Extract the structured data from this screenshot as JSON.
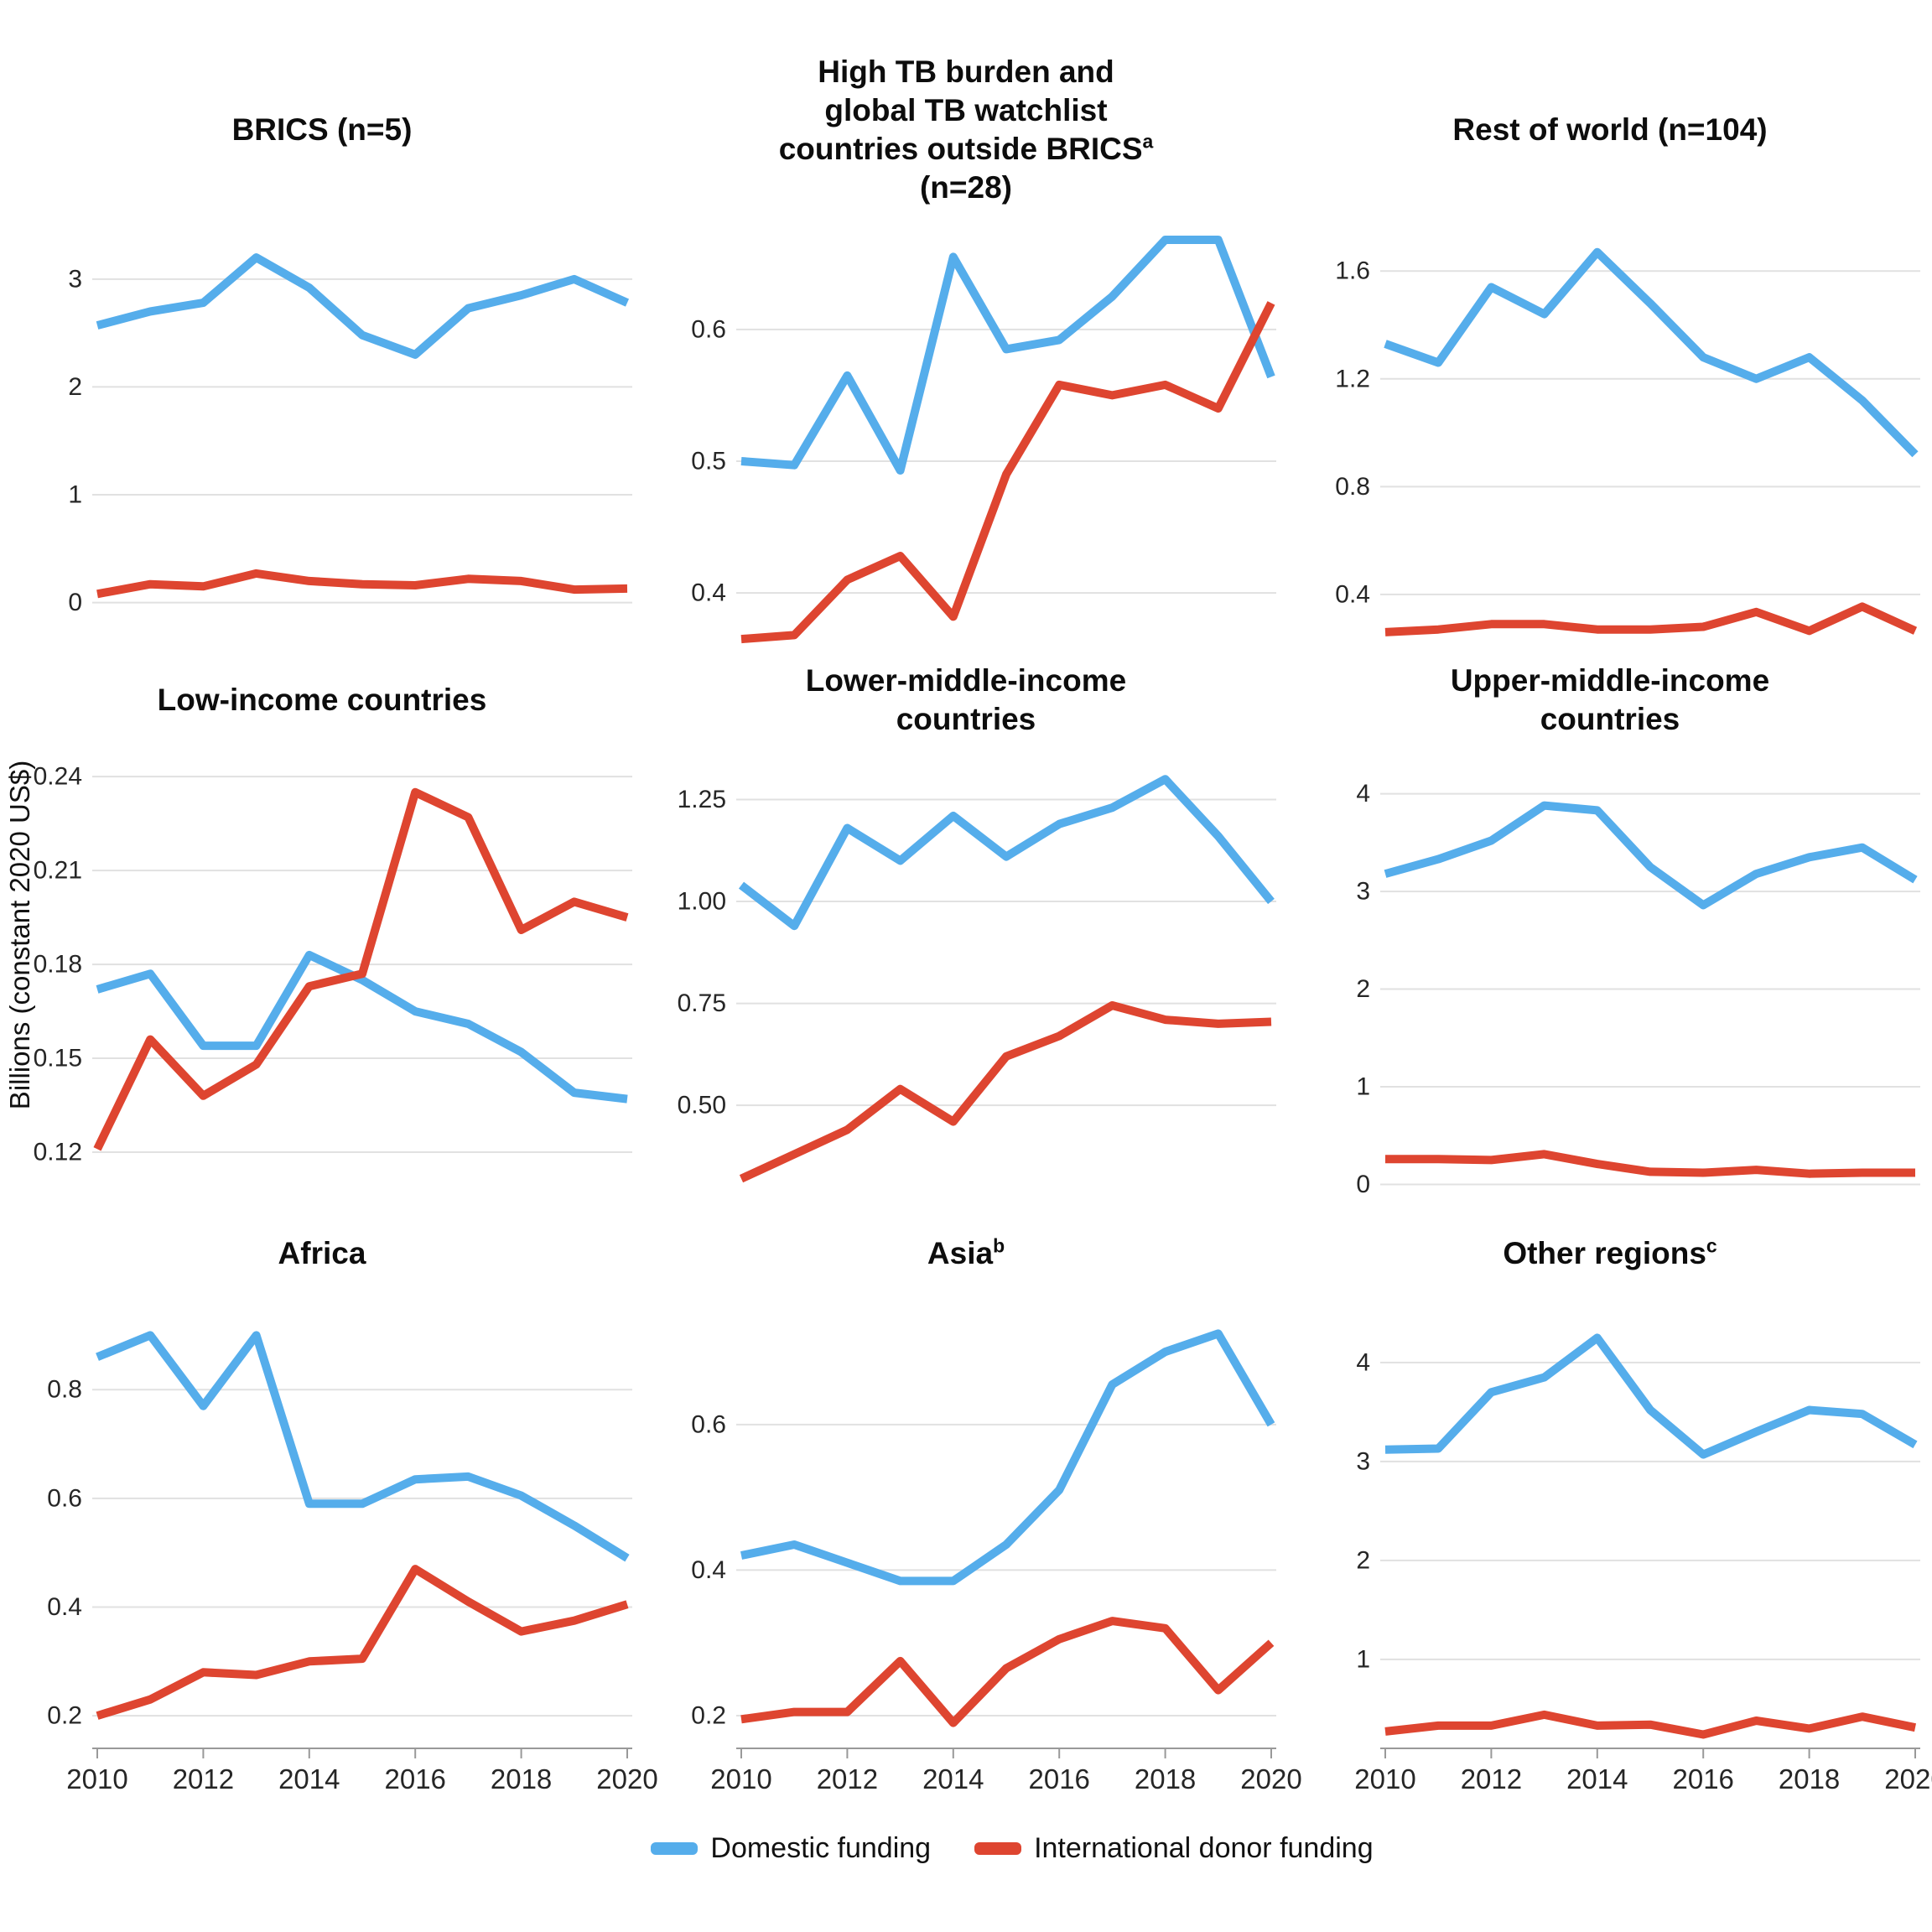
{
  "figure": {
    "y_axis_label": "Billions (constant 2020 US$)",
    "legend": [
      {
        "label": "Domestic funding",
        "color": "#55ADEB",
        "key": "Domestic funding"
      },
      {
        "label": "International donor funding",
        "color": "#DE4530",
        "key": "International donor funding"
      }
    ],
    "series_colors": {
      "Domestic funding": "#55ADEB",
      "International donor funding": "#DE4530"
    },
    "colors": {
      "gridline": "#E1E1E1",
      "axis_line": "#999999",
      "tick_text": "#262626",
      "title_text": "#0d0d0d"
    },
    "x_ticks": [
      2010,
      2012,
      2014,
      2016,
      2018,
      2020
    ],
    "x_tick_labels": [
      "2010",
      "2012",
      "2014",
      "2016",
      "2018",
      "2020"
    ]
  },
  "chart_data": [
    {
      "type": "line",
      "title_lines": [
        {
          "t": "BRICS (n=5)"
        }
      ],
      "x": [
        2010,
        2011,
        2012,
        2013,
        2014,
        2015,
        2016,
        2017,
        2018,
        2019,
        2020
      ],
      "y_domain": [
        -0.4,
        3.45
      ],
      "y_ticks": [
        {
          "v": 0,
          "label": "0"
        },
        {
          "v": 1,
          "label": "1"
        },
        {
          "v": 2,
          "label": "2"
        },
        {
          "v": 3,
          "label": "3"
        }
      ],
      "series": [
        {
          "name": "Domestic funding",
          "values": [
            2.57,
            2.7,
            2.78,
            3.2,
            2.92,
            2.48,
            2.3,
            2.73,
            2.85,
            3.0,
            2.78
          ]
        },
        {
          "name": "International donor funding",
          "values": [
            0.08,
            0.17,
            0.15,
            0.27,
            0.2,
            0.17,
            0.16,
            0.22,
            0.2,
            0.12,
            0.13
          ]
        }
      ]
    },
    {
      "type": "line",
      "title_lines": [
        {
          "t": "High TB burden and"
        },
        {
          "t": "global TB watchlist"
        },
        {
          "t": "countries outside BRICS",
          "sup": "a"
        },
        {
          "t": "(n=28)"
        }
      ],
      "x": [
        2010,
        2011,
        2012,
        2013,
        2014,
        2015,
        2016,
        2017,
        2018,
        2019,
        2020
      ],
      "y_domain": [
        0.36,
        0.675
      ],
      "y_ticks": [
        {
          "v": 0.4,
          "label": "0.4"
        },
        {
          "v": 0.5,
          "label": "0.5"
        },
        {
          "v": 0.6,
          "label": "0.6"
        }
      ],
      "series": [
        {
          "name": "Domestic funding",
          "values": [
            0.5,
            0.497,
            0.565,
            0.493,
            0.655,
            0.585,
            0.592,
            0.625,
            0.668,
            0.668,
            0.564
          ]
        },
        {
          "name": "International donor funding",
          "values": [
            0.365,
            0.368,
            0.41,
            0.428,
            0.382,
            0.49,
            0.558,
            0.55,
            0.558,
            0.54,
            0.62
          ]
        }
      ]
    },
    {
      "type": "line",
      "title_lines": [
        {
          "t": "Rest of world (n=104)"
        }
      ],
      "x": [
        2010,
        2011,
        2012,
        2013,
        2014,
        2015,
        2016,
        2017,
        2018,
        2019,
        2020
      ],
      "y_domain": [
        0.21,
        1.75
      ],
      "y_ticks": [
        {
          "v": 0.4,
          "label": "0.4"
        },
        {
          "v": 0.8,
          "label": "0.8"
        },
        {
          "v": 1.2,
          "label": "1.2"
        },
        {
          "v": 1.6,
          "label": "1.6"
        }
      ],
      "series": [
        {
          "name": "Domestic funding",
          "values": [
            1.33,
            1.26,
            1.54,
            1.44,
            1.67,
            1.48,
            1.28,
            1.2,
            1.28,
            1.12,
            0.92
          ]
        },
        {
          "name": "International donor funding",
          "values": [
            0.26,
            0.27,
            0.29,
            0.29,
            0.27,
            0.27,
            0.28,
            0.335,
            0.265,
            0.355,
            0.265
          ]
        }
      ]
    },
    {
      "type": "line",
      "title_lines": [
        {
          "t": "Low-income countries"
        }
      ],
      "x": [
        2010,
        2011,
        2012,
        2013,
        2014,
        2015,
        2016,
        2017,
        2018,
        2019,
        2020
      ],
      "y_domain": [
        0.105,
        0.247
      ],
      "y_ticks": [
        {
          "v": 0.12,
          "label": "0.12"
        },
        {
          "v": 0.15,
          "label": "0.15"
        },
        {
          "v": 0.18,
          "label": "0.18"
        },
        {
          "v": 0.21,
          "label": "0.21"
        },
        {
          "v": 0.24,
          "label": "0.24"
        }
      ],
      "series": [
        {
          "name": "Domestic funding",
          "values": [
            0.172,
            0.177,
            0.154,
            0.154,
            0.183,
            0.175,
            0.165,
            0.161,
            0.152,
            0.139,
            0.137
          ]
        },
        {
          "name": "International donor funding",
          "values": [
            0.121,
            0.156,
            0.138,
            0.148,
            0.173,
            0.177,
            0.235,
            0.227,
            0.191,
            0.2,
            0.195
          ]
        }
      ]
    },
    {
      "type": "line",
      "title_lines": [
        {
          "t": "Lower-middle-income"
        },
        {
          "t": "countries"
        }
      ],
      "x": [
        2010,
        2011,
        2012,
        2013,
        2014,
        2015,
        2016,
        2017,
        2018,
        2019,
        2020
      ],
      "y_domain": [
        0.27,
        1.36
      ],
      "y_ticks": [
        {
          "v": 0.5,
          "label": "0.50"
        },
        {
          "v": 0.75,
          "label": "0.75"
        },
        {
          "v": 1.0,
          "label": "1.00"
        },
        {
          "v": 1.25,
          "label": "1.25"
        }
      ],
      "series": [
        {
          "name": "Domestic funding",
          "values": [
            1.04,
            0.94,
            1.18,
            1.1,
            1.21,
            1.11,
            1.19,
            1.23,
            1.3,
            1.16,
            1.0
          ]
        },
        {
          "name": "International donor funding",
          "values": [
            0.32,
            0.38,
            0.44,
            0.54,
            0.46,
            0.62,
            0.67,
            0.745,
            0.71,
            0.7,
            0.705
          ]
        }
      ]
    },
    {
      "type": "line",
      "title_lines": [
        {
          "t": "Upper-middle-income"
        },
        {
          "t": "countries"
        }
      ],
      "x": [
        2010,
        2011,
        2012,
        2013,
        2014,
        2015,
        2016,
        2017,
        2018,
        2019,
        2020
      ],
      "y_domain": [
        -0.15,
        4.4
      ],
      "y_ticks": [
        {
          "v": 0,
          "label": "0"
        },
        {
          "v": 1,
          "label": "1"
        },
        {
          "v": 2,
          "label": "2"
        },
        {
          "v": 3,
          "label": "3"
        },
        {
          "v": 4,
          "label": "4"
        }
      ],
      "series": [
        {
          "name": "Domestic funding",
          "values": [
            3.18,
            3.33,
            3.52,
            3.88,
            3.83,
            3.25,
            2.86,
            3.18,
            3.35,
            3.45,
            3.12
          ]
        },
        {
          "name": "International donor funding",
          "values": [
            0.26,
            0.26,
            0.25,
            0.31,
            0.21,
            0.13,
            0.12,
            0.15,
            0.11,
            0.12,
            0.12
          ]
        }
      ]
    },
    {
      "type": "line",
      "title_lines": [
        {
          "t": "Africa"
        }
      ],
      "x": [
        2010,
        2011,
        2012,
        2013,
        2014,
        2015,
        2016,
        2017,
        2018,
        2019,
        2020
      ],
      "y_domain": [
        0.14,
        0.95
      ],
      "y_ticks": [
        {
          "v": 0.2,
          "label": "0.2"
        },
        {
          "v": 0.4,
          "label": "0.4"
        },
        {
          "v": 0.6,
          "label": "0.6"
        },
        {
          "v": 0.8,
          "label": "0.8"
        }
      ],
      "series": [
        {
          "name": "Domestic funding",
          "values": [
            0.86,
            0.9,
            0.77,
            0.9,
            0.59,
            0.59,
            0.635,
            0.64,
            0.605,
            0.55,
            0.49
          ]
        },
        {
          "name": "International donor funding",
          "values": [
            0.2,
            0.23,
            0.28,
            0.275,
            0.3,
            0.305,
            0.47,
            0.41,
            0.355,
            0.375,
            0.405
          ]
        }
      ]
    },
    {
      "type": "line",
      "title_lines": [
        {
          "t": "Asia",
          "sup": "b"
        }
      ],
      "x": [
        2010,
        2011,
        2012,
        2013,
        2014,
        2015,
        2016,
        2017,
        2018,
        2019,
        2020
      ],
      "y_domain": [
        0.155,
        0.76
      ],
      "y_ticks": [
        {
          "v": 0.2,
          "label": "0.2"
        },
        {
          "v": 0.4,
          "label": "0.4"
        },
        {
          "v": 0.6,
          "label": "0.6"
        }
      ],
      "series": [
        {
          "name": "Domestic funding",
          "values": [
            0.42,
            0.435,
            0.41,
            0.385,
            0.385,
            0.435,
            0.51,
            0.655,
            0.7,
            0.725,
            0.6
          ]
        },
        {
          "name": "International donor funding",
          "values": [
            0.195,
            0.205,
            0.205,
            0.275,
            0.19,
            0.265,
            0.305,
            0.33,
            0.32,
            0.235,
            0.3
          ]
        }
      ]
    },
    {
      "type": "line",
      "title_lines": [
        {
          "t": "Other regions",
          "sup": "c"
        }
      ],
      "x": [
        2010,
        2011,
        2012,
        2013,
        2014,
        2015,
        2016,
        2017,
        2018,
        2019,
        2020
      ],
      "y_domain": [
        0.1,
        4.55
      ],
      "y_ticks": [
        {
          "v": 1,
          "label": "1"
        },
        {
          "v": 2,
          "label": "2"
        },
        {
          "v": 3,
          "label": "3"
        },
        {
          "v": 4,
          "label": "4"
        }
      ],
      "series": [
        {
          "name": "Domestic funding",
          "values": [
            3.12,
            3.13,
            3.7,
            3.85,
            4.25,
            3.52,
            3.07,
            3.3,
            3.52,
            3.48,
            3.17
          ]
        },
        {
          "name": "International donor funding",
          "values": [
            0.27,
            0.33,
            0.33,
            0.44,
            0.33,
            0.34,
            0.24,
            0.38,
            0.3,
            0.42,
            0.31
          ]
        }
      ]
    }
  ]
}
